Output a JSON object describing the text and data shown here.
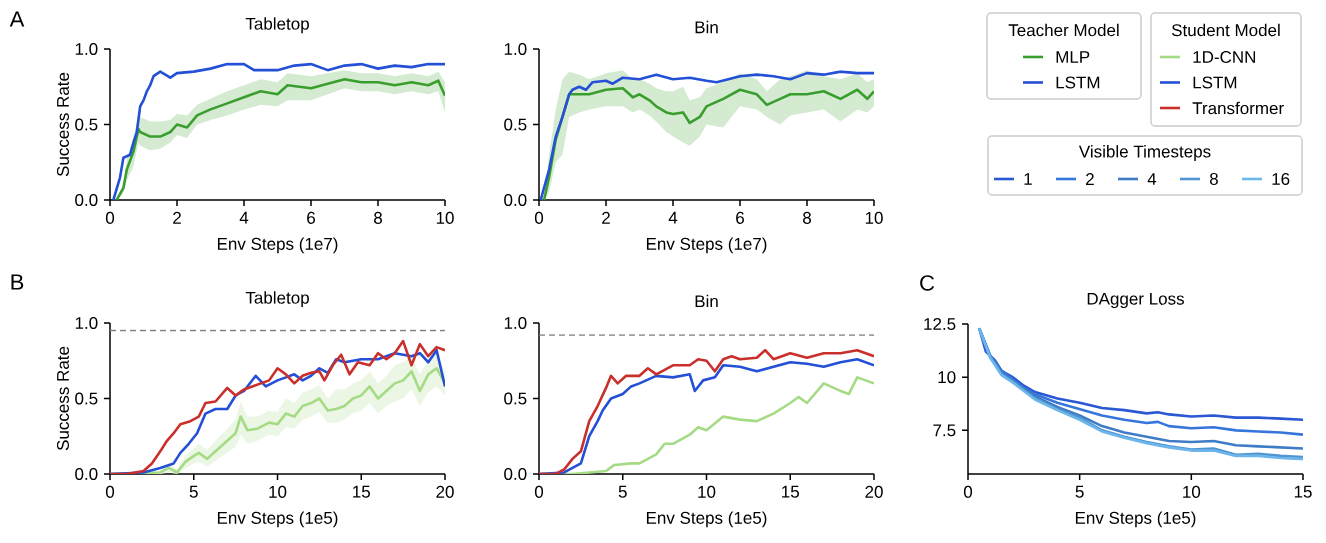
{
  "chart_data": [
    {
      "type": "line",
      "title": "Tabletop",
      "xlabel": "Env Steps (1e7)",
      "ylabel": "Success Rate",
      "xlim": [
        0,
        10
      ],
      "ylim": [
        0,
        1
      ],
      "xticks": [
        0,
        2,
        4,
        6,
        8,
        10
      ],
      "yticks": [
        {
          "value": 0,
          "label": "0.0"
        },
        {
          "value": 0.5,
          "label": "0.5"
        },
        {
          "value": 1,
          "label": "1.0"
        }
      ],
      "annotations": [
        "A"
      ],
      "series": [
        {
          "color": "#3a9e2e",
          "x": [
            0.2,
            0.4,
            0.5,
            0.7,
            0.85,
            0.9,
            1.2,
            1.5,
            1.8,
            2.0,
            2.3,
            2.6,
            3.0,
            3.5,
            4.0,
            4.5,
            5.0,
            5.3,
            6.0,
            6.5,
            7.0,
            7.5,
            8.0,
            8.5,
            9.0,
            9.5,
            9.8,
            10
          ],
          "values": [
            0,
            0.08,
            0.2,
            0.32,
            0.47,
            0.45,
            0.42,
            0.42,
            0.45,
            0.5,
            0.48,
            0.56,
            0.6,
            0.64,
            0.68,
            0.72,
            0.7,
            0.76,
            0.74,
            0.77,
            0.8,
            0.78,
            0.78,
            0.76,
            0.78,
            0.76,
            0.79,
            0.69
          ],
          "lower": [
            0,
            0.05,
            0.13,
            0.22,
            0.38,
            0.36,
            0.33,
            0.34,
            0.38,
            0.43,
            0.41,
            0.5,
            0.53,
            0.56,
            0.6,
            0.63,
            0.62,
            0.66,
            0.66,
            0.7,
            0.74,
            0.72,
            0.72,
            0.7,
            0.72,
            0.7,
            0.72,
            0.58
          ],
          "upper": [
            0,
            0.11,
            0.27,
            0.42,
            0.56,
            0.55,
            0.52,
            0.52,
            0.53,
            0.57,
            0.56,
            0.63,
            0.67,
            0.72,
            0.76,
            0.8,
            0.78,
            0.84,
            0.82,
            0.84,
            0.86,
            0.84,
            0.84,
            0.82,
            0.84,
            0.82,
            0.85,
            0.78
          ]
        },
        {
          "color": "#2350d6",
          "x": [
            0.1,
            0.3,
            0.4,
            0.6,
            0.7,
            0.8,
            0.9,
            1.0,
            1.1,
            1.2,
            1.3,
            1.5,
            1.8,
            2.0,
            2.5,
            3.0,
            3.5,
            4.0,
            4.3,
            5.0,
            5.5,
            6.0,
            6.5,
            7.0,
            7.5,
            8.0,
            8.5,
            9.0,
            9.5,
            10
          ],
          "values": [
            0,
            0.15,
            0.28,
            0.3,
            0.38,
            0.45,
            0.62,
            0.66,
            0.72,
            0.76,
            0.82,
            0.85,
            0.81,
            0.84,
            0.85,
            0.87,
            0.9,
            0.9,
            0.86,
            0.86,
            0.89,
            0.9,
            0.86,
            0.89,
            0.9,
            0.87,
            0.89,
            0.88,
            0.9,
            0.9
          ]
        }
      ]
    },
    {
      "type": "line",
      "title": "Bin",
      "xlabel": "Env Steps (1e7)",
      "xlim": [
        0,
        10
      ],
      "ylim": [
        0,
        1
      ],
      "xticks": [
        0,
        2,
        4,
        6,
        8,
        10
      ],
      "yticks": [
        {
          "value": 0,
          "label": "0.0"
        },
        {
          "value": 0.5,
          "label": "0.5"
        },
        {
          "value": 1,
          "label": "1.0"
        }
      ],
      "legend": "right",
      "legend_title": "Teacher Model",
      "series": [
        {
          "name": "MLP",
          "color": "#3a9e2e",
          "x": [
            0.15,
            0.3,
            0.5,
            0.7,
            0.9,
            1.2,
            1.5,
            2.0,
            2.5,
            2.8,
            3.0,
            3.3,
            3.5,
            3.8,
            4.0,
            4.3,
            4.5,
            4.8,
            5.0,
            5.5,
            6.0,
            6.5,
            6.8,
            7.2,
            7.5,
            8.0,
            8.5,
            9.0,
            9.5,
            9.8,
            10
          ],
          "values": [
            0,
            0.15,
            0.4,
            0.55,
            0.7,
            0.7,
            0.7,
            0.73,
            0.74,
            0.68,
            0.7,
            0.66,
            0.62,
            0.58,
            0.57,
            0.58,
            0.51,
            0.55,
            0.62,
            0.67,
            0.73,
            0.7,
            0.63,
            0.67,
            0.7,
            0.7,
            0.72,
            0.67,
            0.73,
            0.67,
            0.72
          ],
          "lower": [
            0,
            0.05,
            0.25,
            0.3,
            0.55,
            0.58,
            0.6,
            0.62,
            0.62,
            0.58,
            0.6,
            0.56,
            0.52,
            0.45,
            0.42,
            0.38,
            0.36,
            0.42,
            0.5,
            0.48,
            0.62,
            0.6,
            0.55,
            0.5,
            0.56,
            0.58,
            0.6,
            0.52,
            0.6,
            0.58,
            0.62
          ],
          "upper": [
            0,
            0.3,
            0.6,
            0.8,
            0.85,
            0.83,
            0.8,
            0.84,
            0.86,
            0.8,
            0.8,
            0.77,
            0.74,
            0.72,
            0.72,
            0.75,
            0.66,
            0.68,
            0.74,
            0.78,
            0.84,
            0.8,
            0.72,
            0.8,
            0.82,
            0.86,
            0.82,
            0.8,
            0.84,
            0.78,
            0.8
          ]
        },
        {
          "name": "LSTM",
          "color": "#2350d6",
          "x": [
            0.05,
            0.2,
            0.3,
            0.5,
            0.7,
            0.9,
            1.0,
            1.2,
            1.4,
            1.6,
            2.0,
            2.2,
            2.5,
            3.0,
            3.5,
            4.0,
            4.5,
            5.0,
            5.3,
            6.0,
            6.5,
            7.0,
            7.5,
            8.0,
            8.5,
            9.0,
            9.5,
            10
          ],
          "values": [
            0,
            0.12,
            0.2,
            0.42,
            0.55,
            0.7,
            0.73,
            0.75,
            0.73,
            0.78,
            0.79,
            0.77,
            0.81,
            0.8,
            0.83,
            0.8,
            0.81,
            0.79,
            0.78,
            0.82,
            0.83,
            0.82,
            0.8,
            0.84,
            0.83,
            0.85,
            0.84,
            0.84
          ]
        }
      ]
    },
    {
      "type": "line",
      "title": "Tabletop",
      "xlabel": "Env Steps (1e5)",
      "ylabel": "Success Rate",
      "xlim": [
        0,
        20
      ],
      "ylim": [
        0,
        1
      ],
      "xticks": [
        0,
        5,
        10,
        15,
        20
      ],
      "yticks": [
        {
          "value": 0,
          "label": "0.0"
        },
        {
          "value": 0.5,
          "label": "0.5"
        },
        {
          "value": 1,
          "label": "1.0"
        }
      ],
      "annotations": [
        "B"
      ],
      "ref_lines": [
        {
          "axis": "y",
          "value": 0.95,
          "color": "#808080",
          "line_style": "dashed"
        }
      ],
      "series": [
        {
          "color": "#a6db85",
          "x": [
            0,
            3,
            3.5,
            4,
            4.5,
            5,
            5.3,
            5.8,
            6.3,
            7,
            7.5,
            7.8,
            8.2,
            8.8,
            9.5,
            10,
            10.5,
            11,
            11.5,
            12,
            12.5,
            13,
            13.5,
            14,
            14.5,
            15,
            15.5,
            16,
            16.5,
            17,
            17.5,
            18,
            18.5,
            19,
            19.5,
            20
          ],
          "values": [
            0,
            0.01,
            0.04,
            0.01,
            0.08,
            0.12,
            0.14,
            0.1,
            0.15,
            0.22,
            0.27,
            0.38,
            0.29,
            0.3,
            0.34,
            0.33,
            0.4,
            0.38,
            0.45,
            0.47,
            0.5,
            0.42,
            0.43,
            0.45,
            0.5,
            0.52,
            0.58,
            0.5,
            0.55,
            0.6,
            0.62,
            0.68,
            0.55,
            0.66,
            0.7,
            0.6
          ],
          "lower": [
            0,
            0,
            0.01,
            0,
            0.04,
            0.07,
            0.08,
            0.05,
            0.09,
            0.14,
            0.18,
            0.26,
            0.2,
            0.22,
            0.26,
            0.25,
            0.31,
            0.3,
            0.36,
            0.38,
            0.41,
            0.34,
            0.34,
            0.36,
            0.4,
            0.42,
            0.47,
            0.4,
            0.45,
            0.48,
            0.5,
            0.56,
            0.45,
            0.54,
            0.58,
            0.52
          ],
          "upper": [
            0,
            0.02,
            0.07,
            0.03,
            0.12,
            0.17,
            0.2,
            0.16,
            0.22,
            0.3,
            0.36,
            0.48,
            0.38,
            0.38,
            0.42,
            0.41,
            0.5,
            0.47,
            0.54,
            0.56,
            0.59,
            0.5,
            0.56,
            0.56,
            0.6,
            0.62,
            0.68,
            0.6,
            0.65,
            0.72,
            0.74,
            0.78,
            0.66,
            0.76,
            0.8,
            0.68
          ]
        },
        {
          "color": "#2350d6",
          "x": [
            0,
            2,
            3,
            3.8,
            4.2,
            4.7,
            5.2,
            5.7,
            6.3,
            7,
            7.5,
            8,
            8.7,
            9.3,
            10,
            10.5,
            11,
            11.5,
            12,
            12.5,
            13,
            13.5,
            14,
            15,
            16,
            17,
            18,
            18.5,
            19,
            19.5,
            20
          ],
          "values": [
            0,
            0.01,
            0.04,
            0.07,
            0.14,
            0.2,
            0.27,
            0.4,
            0.43,
            0.43,
            0.52,
            0.55,
            0.65,
            0.58,
            0.62,
            0.64,
            0.66,
            0.62,
            0.65,
            0.7,
            0.67,
            0.76,
            0.74,
            0.76,
            0.76,
            0.8,
            0.78,
            0.8,
            0.74,
            0.82,
            0.58
          ]
        },
        {
          "color": "#c9302c",
          "x": [
            0,
            1,
            2,
            2.5,
            3,
            3.4,
            3.8,
            4.2,
            4.8,
            5.3,
            5.7,
            6.3,
            7,
            7.5,
            8,
            8.5,
            9,
            9.5,
            10,
            10.5,
            11,
            11.5,
            12,
            12.5,
            12.8,
            13.3,
            13.8,
            14.3,
            14.8,
            15.5,
            16,
            16.5,
            17,
            17.5,
            18,
            18.5,
            19,
            19.5,
            20
          ],
          "values": [
            0,
            0,
            0.02,
            0.07,
            0.15,
            0.22,
            0.27,
            0.33,
            0.35,
            0.38,
            0.47,
            0.48,
            0.57,
            0.52,
            0.56,
            0.58,
            0.6,
            0.62,
            0.7,
            0.66,
            0.6,
            0.65,
            0.67,
            0.68,
            0.62,
            0.72,
            0.79,
            0.66,
            0.74,
            0.72,
            0.8,
            0.76,
            0.8,
            0.88,
            0.72,
            0.86,
            0.78,
            0.84,
            0.82
          ]
        }
      ]
    },
    {
      "type": "line",
      "title": "Bin",
      "xlabel": "Env Steps (1e5)",
      "xlim": [
        0,
        20
      ],
      "ylim": [
        0,
        1
      ],
      "xticks": [
        0,
        5,
        10,
        15,
        20
      ],
      "yticks": [
        {
          "value": 0,
          "label": "0.0"
        },
        {
          "value": 0.5,
          "label": "0.5"
        },
        {
          "value": 1,
          "label": "1.0"
        }
      ],
      "legend": "top right",
      "legend_title": "Student Model",
      "ref_lines": [
        {
          "axis": "y",
          "value": 0.92,
          "color": "#808080",
          "line_style": "dashed"
        }
      ],
      "series": [
        {
          "name": "1D-CNN",
          "color": "#a6db85",
          "x": [
            0,
            2,
            3,
            4,
            4.5,
            5.5,
            6,
            7,
            7.5,
            8,
            9,
            9.5,
            10,
            11,
            12,
            13,
            14,
            15,
            15.5,
            16,
            17,
            18,
            18.5,
            19,
            20
          ],
          "values": [
            0,
            0,
            0.01,
            0.02,
            0.06,
            0.07,
            0.07,
            0.13,
            0.2,
            0.2,
            0.26,
            0.31,
            0.29,
            0.38,
            0.36,
            0.35,
            0.4,
            0.47,
            0.51,
            0.47,
            0.6,
            0.55,
            0.53,
            0.64,
            0.6
          ]
        },
        {
          "name": "LSTM",
          "color": "#2350d6",
          "x": [
            0,
            1.5,
            2,
            2.5,
            3,
            3.5,
            3.8,
            4.3,
            5,
            5.5,
            6,
            7,
            8,
            9,
            9.3,
            9.8,
            10.5,
            11,
            12,
            13,
            14,
            15,
            16,
            17,
            18,
            19,
            20
          ],
          "values": [
            0,
            0.01,
            0.04,
            0.07,
            0.25,
            0.35,
            0.42,
            0.5,
            0.53,
            0.58,
            0.6,
            0.65,
            0.64,
            0.66,
            0.55,
            0.62,
            0.64,
            0.72,
            0.71,
            0.68,
            0.71,
            0.74,
            0.73,
            0.71,
            0.74,
            0.76,
            0.72
          ]
        },
        {
          "name": "Transformer",
          "color": "#c9302c",
          "x": [
            0,
            1,
            1.5,
            2,
            2.5,
            3,
            3.5,
            4,
            4.3,
            4.7,
            5.2,
            6,
            6.5,
            7,
            8,
            9,
            9.5,
            10,
            10.5,
            11,
            11.5,
            12,
            13,
            13.5,
            14,
            15,
            16,
            17,
            18,
            19,
            20
          ],
          "values": [
            0,
            0,
            0.03,
            0.1,
            0.15,
            0.35,
            0.45,
            0.57,
            0.65,
            0.6,
            0.65,
            0.65,
            0.7,
            0.66,
            0.72,
            0.72,
            0.76,
            0.75,
            0.68,
            0.76,
            0.78,
            0.76,
            0.77,
            0.82,
            0.76,
            0.8,
            0.77,
            0.8,
            0.8,
            0.82,
            0.78
          ]
        }
      ]
    },
    {
      "type": "line",
      "title": "DAgger Loss",
      "xlabel": "Env Steps (1e5)",
      "xlim": [
        0,
        15
      ],
      "ylim": [
        5.45,
        12.5
      ],
      "xticks": [
        0,
        5,
        10,
        15
      ],
      "yticks": [
        7.5,
        10,
        12.5
      ],
      "legend": "top",
      "legend_title": "Visible Timesteps",
      "annotations": [
        "C"
      ],
      "series": [
        {
          "name": "1",
          "color": "#2a58d4",
          "x": [
            0.5,
            0.8,
            1.2,
            1.5,
            2,
            2.5,
            3,
            4,
            5,
            6,
            7,
            8,
            8.5,
            9,
            10,
            11,
            12,
            13,
            14,
            15
          ],
          "values": [
            12.3,
            11.2,
            10.8,
            10.3,
            10.0,
            9.6,
            9.3,
            9.0,
            8.8,
            8.55,
            8.45,
            8.3,
            8.35,
            8.25,
            8.15,
            8.2,
            8.1,
            8.1,
            8.05,
            8.0
          ]
        },
        {
          "name": "2",
          "color": "#3676dc",
          "x": [
            0.5,
            1,
            1.5,
            2,
            2.5,
            3,
            4,
            5,
            6,
            7,
            8,
            8.5,
            9,
            10,
            11,
            12,
            13,
            14,
            15
          ],
          "values": [
            12.3,
            11.0,
            10.3,
            9.9,
            9.5,
            9.2,
            8.8,
            8.5,
            8.2,
            8.0,
            7.85,
            7.9,
            7.7,
            7.6,
            7.65,
            7.5,
            7.45,
            7.4,
            7.3
          ]
        },
        {
          "name": "4",
          "color": "#3f7cc6",
          "x": [
            0.5,
            1,
            1.5,
            2,
            2.5,
            3,
            4,
            5,
            6,
            7,
            8,
            9,
            10,
            11,
            12,
            13,
            14,
            15
          ],
          "values": [
            12.3,
            11.0,
            10.2,
            9.85,
            9.45,
            9.1,
            8.6,
            8.2,
            7.7,
            7.4,
            7.2,
            7.0,
            6.95,
            7.0,
            6.8,
            6.75,
            6.7,
            6.65
          ]
        },
        {
          "name": "8",
          "color": "#5095d0",
          "x": [
            0.5,
            1,
            1.5,
            2,
            2.5,
            3,
            4,
            5,
            6,
            7,
            8,
            9,
            10,
            11,
            12,
            13,
            14,
            15
          ],
          "values": [
            12.3,
            10.95,
            10.15,
            9.8,
            9.4,
            9.0,
            8.5,
            8.1,
            7.5,
            7.2,
            6.95,
            6.75,
            6.6,
            6.65,
            6.35,
            6.4,
            6.3,
            6.25
          ]
        },
        {
          "name": "16",
          "color": "#6cb6ec",
          "x": [
            0.5,
            1,
            1.5,
            2,
            2.5,
            3,
            4,
            5,
            6,
            7,
            8,
            9,
            10,
            11,
            12,
            13,
            14,
            15
          ],
          "values": [
            12.3,
            10.9,
            10.1,
            9.75,
            9.35,
            8.95,
            8.45,
            8.0,
            7.45,
            7.15,
            6.9,
            6.7,
            6.55,
            6.55,
            6.3,
            6.3,
            6.2,
            6.15
          ]
        }
      ]
    }
  ]
}
